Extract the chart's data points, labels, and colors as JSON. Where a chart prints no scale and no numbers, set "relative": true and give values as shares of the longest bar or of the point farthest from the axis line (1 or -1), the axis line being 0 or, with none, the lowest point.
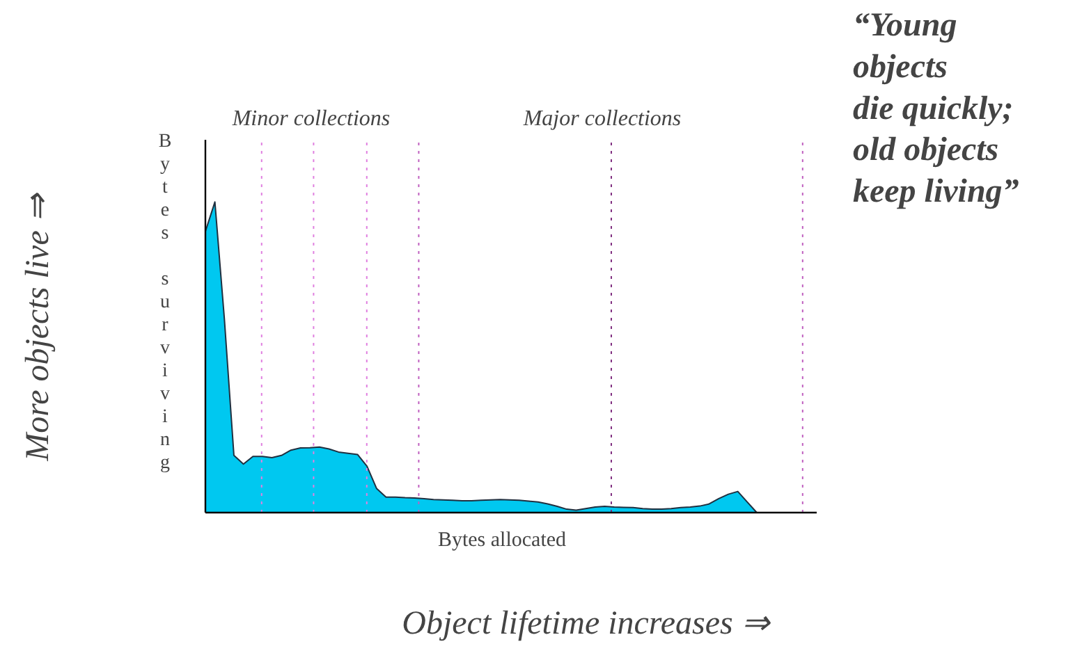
{
  "chart_data": {
    "type": "area",
    "relative": true,
    "xlabel": "Bytes allocated",
    "ylabel": "Bytes surviving",
    "categories": [
      null,
      null,
      null,
      null,
      null,
      null,
      null,
      null,
      null,
      null,
      null,
      null,
      null,
      null,
      null,
      null,
      null,
      null,
      null,
      null,
      null,
      null,
      null,
      null,
      null,
      null,
      null,
      null,
      null,
      null,
      null,
      null,
      null,
      null,
      null,
      null,
      null,
      null,
      null,
      null,
      null,
      null,
      null,
      null,
      null,
      null,
      null,
      null,
      null,
      null,
      null,
      null,
      null,
      null,
      null,
      null,
      null,
      null,
      null,
      null,
      null,
      null,
      null,
      null
    ],
    "series": [
      {
        "color": "#00c8f0",
        "values": [
          0.905,
          1,
          0.622,
          0.184,
          0.156,
          0.181,
          0.181,
          0.177,
          0.184,
          0.201,
          0.208,
          0.209,
          0.211,
          0.205,
          0.195,
          0.191,
          0.187,
          0.149,
          0.078,
          0.05,
          0.05,
          0.048,
          0.047,
          0.045,
          0.042,
          0.041,
          0.04,
          0.038,
          0.038,
          0.04,
          0.041,
          0.042,
          0.041,
          0.04,
          0.037,
          0.034,
          0.028,
          0.02,
          0.011,
          0.008,
          0.013,
          0.018,
          0.02,
          0.018,
          0.017,
          0.016,
          0.013,
          0.011,
          0.011,
          0.013,
          0.016,
          0.018,
          0.021,
          0.028,
          0.045,
          0.059,
          0.068,
          0.034,
          0,
          0,
          0,
          0,
          0,
          0
        ]
      }
    ],
    "annotations": [
      "Minor collections",
      "Major collections",
      "More objects live ⇒",
      "Object lifetime increases ⇒",
      "“Young\nobjects\ndie quickly;\nold objects\nkeep living”"
    ],
    "grid": "x",
    "tick_labels": false
  }
}
